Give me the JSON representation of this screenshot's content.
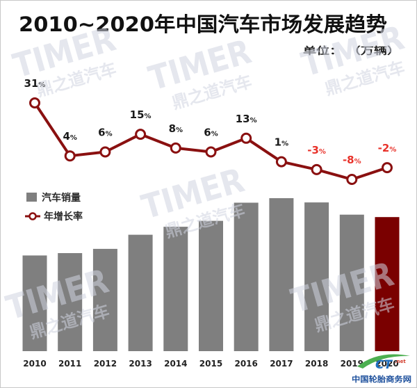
{
  "chart_data": {
    "type": "bar",
    "title": "2010~2020年中国汽车市场发展趋势",
    "unit_label": "单位： （万辆）",
    "xlabel": "",
    "ylabel": "",
    "grid": false,
    "legend": "left-middle",
    "categories": [
      "2010",
      "2011",
      "2012",
      "2013",
      "2014",
      "2015",
      "2016",
      "2017",
      "2018",
      "2019",
      "2020"
    ],
    "series": [
      {
        "name": "汽车销量",
        "type": "bar",
        "unit": "万辆",
        "values": [
          1806,
          1851,
          1931,
          2198,
          2349,
          2460,
          2803,
          2888,
          2808,
          2577,
          2531
        ],
        "color": "#7f7f7f",
        "highlight_index": 10,
        "highlight_color": "#7a0000"
      },
      {
        "name": "年增长率",
        "type": "line",
        "unit": "%",
        "values": [
          31,
          4,
          6,
          15,
          8,
          6,
          13,
          1,
          -3,
          -8,
          -2
        ],
        "labels": [
          "31%",
          "4%",
          "6%",
          "15%",
          "8%",
          "6%",
          "13%",
          "1%",
          "-3%",
          "-8%",
          "-2%"
        ],
        "color": "#8a1010",
        "label_color_positive": "#1a1a1a",
        "label_color_negative": "#e8322a"
      }
    ]
  },
  "watermark": {
    "text": "TIMER",
    "subtext": "鼎之道汽车"
  },
  "footer_logo": {
    "mark": "CT",
    "suffix": ".net",
    "text": "中国轮胎商务网"
  }
}
